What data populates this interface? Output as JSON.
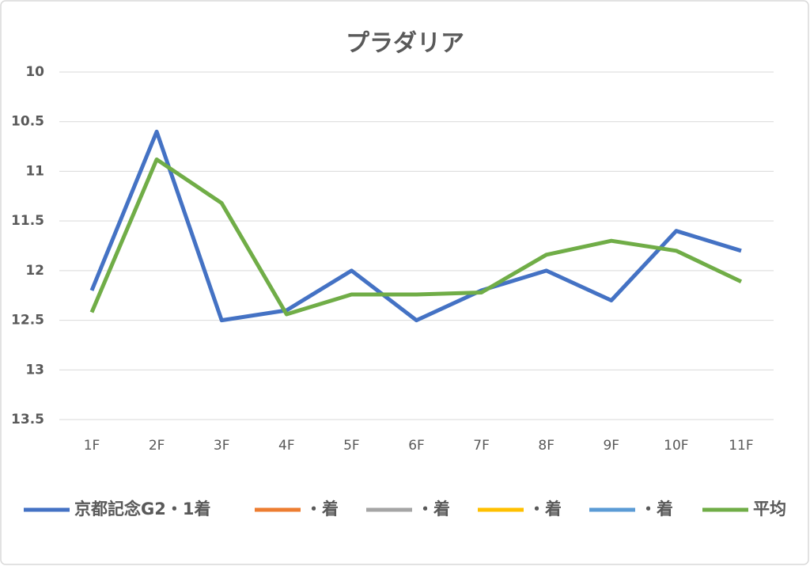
{
  "chart_data": {
    "type": "line",
    "title": "プラダリア",
    "categories": [
      "1F",
      "2F",
      "3F",
      "4F",
      "5F",
      "6F",
      "7F",
      "8F",
      "9F",
      "10F",
      "11F"
    ],
    "series": [
      {
        "name": "京都記念G2・1着",
        "color": "#4472c4",
        "values": [
          12.2,
          10.6,
          12.5,
          12.4,
          12.0,
          12.5,
          12.2,
          12.0,
          12.3,
          11.6,
          11.8
        ]
      },
      {
        "name": "・着",
        "color": "#ed7d31",
        "values": [
          null,
          null,
          null,
          null,
          null,
          null,
          null,
          null,
          null,
          null,
          null
        ]
      },
      {
        "name": "・着",
        "color": "#a5a5a5",
        "values": [
          null,
          null,
          null,
          null,
          null,
          null,
          null,
          null,
          null,
          null,
          null
        ]
      },
      {
        "name": "・着",
        "color": "#ffc000",
        "values": [
          null,
          null,
          null,
          null,
          null,
          null,
          null,
          null,
          null,
          null,
          null
        ]
      },
      {
        "name": "・着",
        "color": "#5b9bd5",
        "values": [
          null,
          null,
          null,
          null,
          null,
          null,
          null,
          null,
          null,
          null,
          null
        ]
      },
      {
        "name": "平均",
        "color": "#70ad47",
        "values": [
          12.42,
          10.88,
          11.32,
          12.44,
          12.24,
          12.24,
          12.22,
          11.84,
          11.7,
          11.8,
          12.11
        ]
      }
    ],
    "ylim": [
      10,
      13.5
    ],
    "yticks": [
      10,
      10.5,
      11,
      11.5,
      12,
      12.5,
      13,
      13.5
    ],
    "y_inverted": true,
    "grid": true,
    "legend": "bottom"
  }
}
